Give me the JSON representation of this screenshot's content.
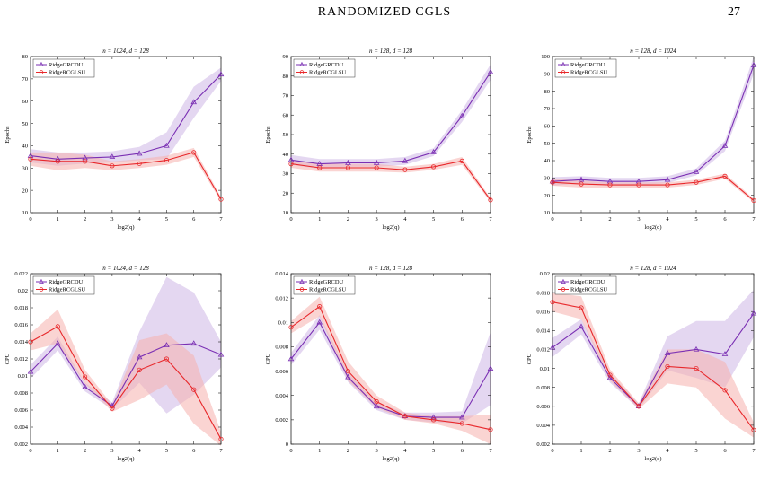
{
  "header": {
    "running_title": "RANDOMIZED CGLS",
    "page_number": "27"
  },
  "colors": {
    "purple": "#7a2fb3",
    "red": "#e8282b",
    "purple_band": "#cdb6e6",
    "red_band": "#f5b0ad"
  },
  "chart_data": [
    {
      "type": "line",
      "title": "n = 1024, d = 128",
      "xlabel": "log2(q)",
      "ylabel": "Epochs",
      "x": [
        0,
        1,
        2,
        3,
        4,
        5,
        6,
        7
      ],
      "xlim": [
        0,
        7
      ],
      "ylim": [
        10,
        80
      ],
      "yticks": [
        "10",
        "20",
        "30",
        "40",
        "50",
        "60",
        "70",
        "80"
      ],
      "legend_position": "top-left",
      "series": [
        {
          "name": "RidgeGRCDU",
          "values": [
            35.5,
            34,
            34.5,
            35,
            36.5,
            40,
            59.5,
            72
          ],
          "band": [
            3,
            3,
            2.5,
            2.5,
            3,
            6,
            7,
            3
          ]
        },
        {
          "name": "RidgeRCGLSU",
          "values": [
            34,
            33,
            33,
            31,
            32,
            33.5,
            37,
            16
          ],
          "band": [
            3,
            4,
            3,
            2,
            2,
            2,
            2,
            1
          ]
        }
      ]
    },
    {
      "type": "line",
      "title": "n = 128, d = 128",
      "xlabel": "log2(q)",
      "ylabel": "Epochs",
      "x": [
        0,
        1,
        2,
        3,
        4,
        5,
        6,
        7
      ],
      "xlim": [
        0,
        7
      ],
      "ylim": [
        10,
        90
      ],
      "yticks": [
        "10",
        "20",
        "30",
        "40",
        "50",
        "60",
        "70",
        "80",
        "90"
      ],
      "legend_position": "top-left",
      "series": [
        {
          "name": "RidgeGRCDU",
          "values": [
            37,
            35,
            35.5,
            35.5,
            36.5,
            41,
            59.5,
            82
          ],
          "band": [
            2.5,
            2.5,
            2,
            2,
            2,
            2,
            3,
            4
          ]
        },
        {
          "name": "RidgeRCGLSU",
          "values": [
            35,
            33,
            33,
            33,
            32,
            33.5,
            36.5,
            16.5
          ],
          "band": [
            2,
            2,
            2,
            2,
            1.5,
            1.5,
            2,
            1
          ]
        }
      ]
    },
    {
      "type": "line",
      "title": "n = 128, d = 1024",
      "xlabel": "log2(q)",
      "ylabel": "Epochs",
      "x": [
        0,
        1,
        2,
        3,
        4,
        5,
        6,
        7
      ],
      "xlim": [
        0,
        7
      ],
      "ylim": [
        10,
        100
      ],
      "yticks": [
        "10",
        "20",
        "30",
        "40",
        "50",
        "60",
        "70",
        "80",
        "90",
        "100"
      ],
      "legend_position": "top-left",
      "series": [
        {
          "name": "RidgeGRCDU",
          "values": [
            28,
            29,
            28,
            28,
            29,
            33.5,
            48.5,
            95
          ],
          "band": [
            2.5,
            2,
            2,
            2,
            2,
            2,
            3,
            5
          ]
        },
        {
          "name": "RidgeRCGLSU",
          "values": [
            27.5,
            26.5,
            26,
            26,
            26,
            27.5,
            31,
            17
          ],
          "band": [
            2,
            2,
            1.5,
            1.5,
            1.5,
            1.5,
            1.5,
            1
          ]
        }
      ]
    },
    {
      "type": "line",
      "title": "n = 1024, d = 128",
      "xlabel": "log2(q)",
      "ylabel": "CPU",
      "x": [
        0,
        1,
        2,
        3,
        4,
        5,
        6,
        7
      ],
      "xlim": [
        0,
        7
      ],
      "ylim": [
        0.002,
        0.022
      ],
      "yticks": [
        "0.002",
        "0.004",
        "0.006",
        "0.008",
        "0.01",
        "0.012",
        "0.014",
        "0.016",
        "0.018",
        "0.02",
        "0.022"
      ],
      "legend_position": "top-left",
      "series": [
        {
          "name": "RidgeGRCDU",
          "values": [
            0.0105,
            0.0138,
            0.0087,
            0.0065,
            0.0122,
            0.0136,
            0.0138,
            0.0125
          ],
          "band": [
            0.0008,
            0.0008,
            0.0005,
            0.0004,
            0.003,
            0.008,
            0.006,
            0.0015
          ]
        },
        {
          "name": "RidgeRCGLSU",
          "values": [
            0.014,
            0.0158,
            0.0099,
            0.0062,
            0.0107,
            0.012,
            0.0084,
            0.0026
          ],
          "band": [
            0.001,
            0.002,
            0.0008,
            0.0004,
            0.0035,
            0.003,
            0.004,
            0.0008
          ]
        }
      ]
    },
    {
      "type": "line",
      "title": "n = 128, d = 128",
      "xlabel": "log2(q)",
      "ylabel": "CPU",
      "x": [
        0,
        1,
        2,
        3,
        4,
        5,
        6,
        7
      ],
      "xlim": [
        0,
        7
      ],
      "ylim": [
        0,
        0.014
      ],
      "yticks": [
        "0",
        "0.002",
        "0.004",
        "0.006",
        "0.008",
        "0.01",
        "0.012",
        "0.014"
      ],
      "legend_position": "top-left",
      "series": [
        {
          "name": "RidgeGRCDU",
          "values": [
            0.007,
            0.01,
            0.0055,
            0.0031,
            0.0023,
            0.0022,
            0.0022,
            0.0062
          ],
          "band": [
            0.0005,
            0.0006,
            0.0004,
            0.0003,
            0.0003,
            0.0004,
            0.0005,
            0.003
          ]
        },
        {
          "name": "RidgeRCGLSU",
          "values": [
            0.0096,
            0.0113,
            0.006,
            0.0035,
            0.0023,
            0.002,
            0.0017,
            0.0012
          ],
          "band": [
            0.0005,
            0.0008,
            0.0008,
            0.0005,
            0.0003,
            0.0003,
            0.0006,
            0.0012
          ]
        }
      ]
    },
    {
      "type": "line",
      "title": "n = 128, d = 1024",
      "xlabel": "log2(q)",
      "ylabel": "CPU",
      "x": [
        0,
        1,
        2,
        3,
        4,
        5,
        6,
        7
      ],
      "xlim": [
        0,
        7
      ],
      "ylim": [
        0.002,
        0.02
      ],
      "yticks": [
        "0.002",
        "0.004",
        "0.006",
        "0.008",
        "0.01",
        "0.012",
        "0.014",
        "0.016",
        "0.018",
        "0.02"
      ],
      "legend_position": "top-left",
      "series": [
        {
          "name": "RidgeGRCDU",
          "values": [
            0.0122,
            0.0144,
            0.009,
            0.006,
            0.0116,
            0.012,
            0.0115,
            0.0158
          ],
          "band": [
            0.001,
            0.0008,
            0.0005,
            0.0003,
            0.0018,
            0.003,
            0.0035,
            0.0025
          ]
        },
        {
          "name": "RidgeRCGLSU",
          "values": [
            0.017,
            0.0164,
            0.0093,
            0.006,
            0.0102,
            0.01,
            0.0077,
            0.0035
          ],
          "band": [
            0.001,
            0.0012,
            0.0006,
            0.0003,
            0.0018,
            0.002,
            0.003,
            0.0008
          ]
        }
      ]
    }
  ]
}
